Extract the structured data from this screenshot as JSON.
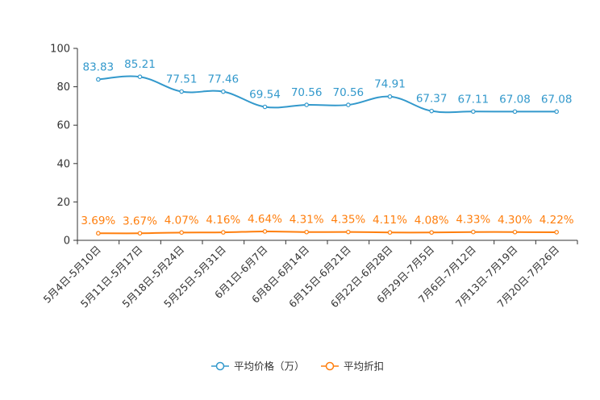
{
  "chart_data": {
    "type": "line",
    "categories": [
      "5月4日-5月10日",
      "5月11日-5月17日",
      "5月18日-5月24日",
      "5月25日-5月31日",
      "6月1日-6月7日",
      "6月8日-6月14日",
      "6月15日-6月21日",
      "6月22日-6月28日",
      "6月29日-7月5日",
      "7月6日-7月12日",
      "7月13日-7月19日",
      "7月20日-7月26日"
    ],
    "series": [
      {
        "name": "平均价格（万）",
        "color": "#3399cc",
        "values": [
          83.83,
          85.21,
          77.51,
          77.46,
          69.54,
          70.56,
          70.56,
          74.91,
          67.37,
          67.11,
          67.08,
          67.08
        ],
        "labels": [
          "83.83",
          "85.21",
          "77.51",
          "77.46",
          "69.54",
          "70.56",
          "70.56",
          "74.91",
          "67.37",
          "67.11",
          "67.08",
          "67.08"
        ]
      },
      {
        "name": "平均折扣",
        "color": "#ff7f0e",
        "values": [
          3.69,
          3.67,
          4.07,
          4.16,
          4.64,
          4.31,
          4.35,
          4.11,
          4.08,
          4.33,
          4.3,
          4.22
        ],
        "labels": [
          "3.69%",
          "3.67%",
          "4.07%",
          "4.16%",
          "4.64%",
          "4.31%",
          "4.35%",
          "4.11%",
          "4.08%",
          "4.33%",
          "4.30%",
          "4.22%"
        ]
      }
    ],
    "yticks": [
      "0",
      "20",
      "40",
      "60",
      "80",
      "100"
    ],
    "ylim": [
      0,
      100
    ],
    "title": "",
    "xlabel": "",
    "ylabel": "",
    "legend_position": "bottom-center"
  }
}
